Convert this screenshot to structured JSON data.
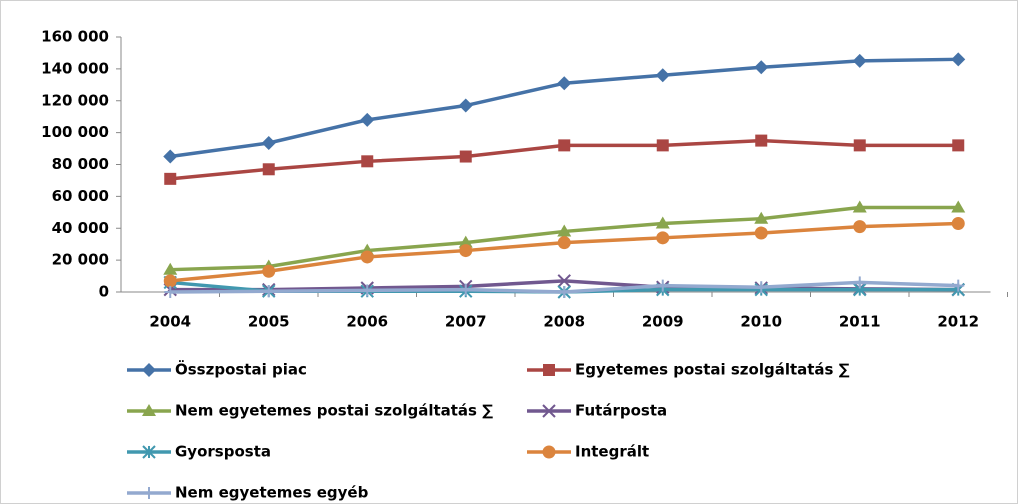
{
  "chart_data": {
    "type": "line",
    "categories": [
      "2004",
      "2005",
      "2006",
      "2007",
      "2008",
      "2009",
      "2010",
      "2011",
      "2012"
    ],
    "series": [
      {
        "name": "Összpostai piac",
        "color": "#4572a7",
        "marker": "diamond",
        "values": [
          85000,
          93500,
          108000,
          117000,
          131000,
          136000,
          141000,
          145000,
          146000
        ]
      },
      {
        "name": "Egyetemes postai szolgáltatás ∑",
        "color": "#aa4643",
        "marker": "square",
        "values": [
          71000,
          77000,
          82000,
          85000,
          92000,
          92000,
          95000,
          92000,
          92000
        ]
      },
      {
        "name": "Nem egyetemes postai szolgáltatás ∑",
        "color": "#89a54e",
        "marker": "triangle",
        "values": [
          14000,
          16000,
          26000,
          31000,
          38000,
          43000,
          46000,
          53000,
          53000
        ]
      },
      {
        "name": "Futárposta",
        "color": "#71588f",
        "marker": "x",
        "values": [
          1500,
          1500,
          2500,
          3500,
          7000,
          3000,
          2500,
          2000,
          1500
        ]
      },
      {
        "name": "Gyorsposta",
        "color": "#4198af",
        "marker": "asterisk",
        "values": [
          6000,
          500,
          500,
          500,
          0,
          1500,
          1500,
          1500,
          1500
        ]
      },
      {
        "name": "Integrált",
        "color": "#db843d",
        "marker": "circle",
        "values": [
          7000,
          13000,
          22000,
          26000,
          31000,
          34000,
          37000,
          41000,
          43000
        ]
      },
      {
        "name": "Nem egyetemes egyéb",
        "color": "#93a9cf",
        "marker": "plus",
        "values": [
          0,
          500,
          1000,
          1500,
          0,
          4000,
          3000,
          6000,
          4000
        ]
      }
    ],
    "ylim": [
      0,
      160000
    ],
    "yticks": [
      0,
      {
        "value": 20000,
        "label": "20 000"
      },
      {
        "value": 40000,
        "label": "40 000"
      },
      {
        "value": 60000,
        "label": "60 000"
      },
      {
        "value": 80000,
        "label": "80 000"
      },
      {
        "value": 100000,
        "label": "100 000"
      },
      {
        "value": 120000,
        "label": "120 000"
      },
      {
        "value": 140000,
        "label": "140 000"
      },
      {
        "value": 160000,
        "label": "160 000"
      }
    ],
    "grid": false,
    "legend": "bottom"
  }
}
